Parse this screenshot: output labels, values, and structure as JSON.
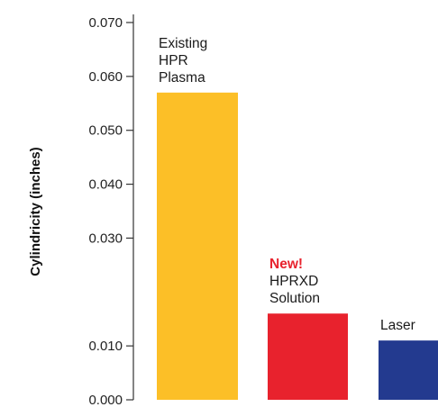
{
  "chart_data": {
    "type": "bar",
    "categories": [
      "Existing HPR Plasma",
      "New! HPRXD Solution",
      "Laser"
    ],
    "values": [
      0.057,
      0.016,
      0.011
    ],
    "bar_labels": [
      {
        "tag": "",
        "lines": [
          "Existing",
          "HPR",
          "Plasma"
        ]
      },
      {
        "tag": "New!",
        "lines": [
          "HPRXD",
          "Solution"
        ]
      },
      {
        "tag": "",
        "lines": [
          "Laser"
        ]
      }
    ],
    "colors": [
      "#fcbf27",
      "#e8222d",
      "#233a8f"
    ],
    "tag_color": "#e8222d",
    "title": "",
    "xlabel": "",
    "ylabel": "Cylindricity (inches)",
    "yticks": [
      "0.000",
      "0.010",
      "0.030",
      "0.040",
      "0.050",
      "0.060",
      "0.070"
    ],
    "ylim": [
      0,
      0.07
    ],
    "grid": false
  }
}
